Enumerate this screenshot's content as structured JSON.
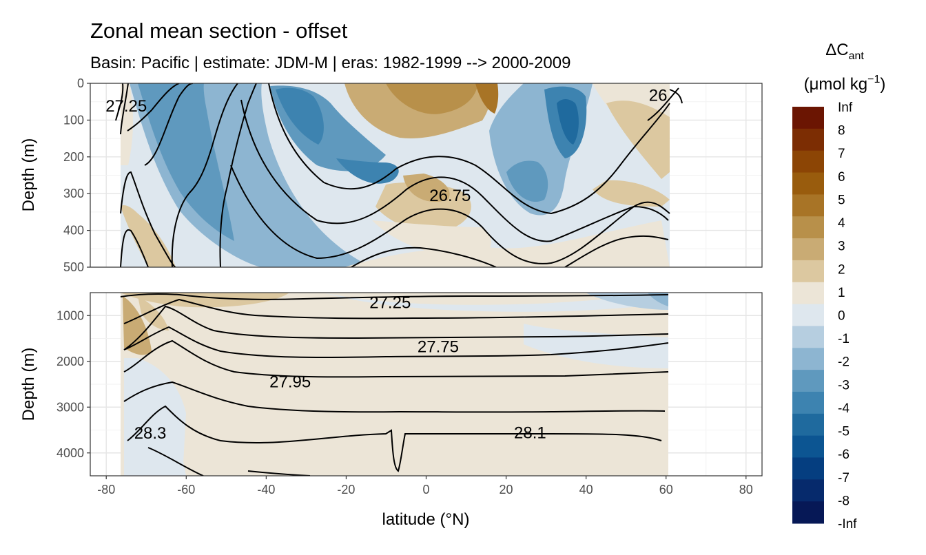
{
  "chart_data": {
    "type": "heatmap",
    "title": "Zonal mean section - offset",
    "subtitle": "Basin: Pacific | estimate: JDM-M | eras: 1982-1999 --> 2000-2009",
    "xlabel": "latitude (°N)",
    "x_ticks": [
      -80,
      -60,
      -40,
      -20,
      0,
      20,
      40,
      60,
      80
    ],
    "xlim": [
      -84,
      84
    ],
    "legend": {
      "title_main": "ΔC",
      "title_sub": "ant",
      "unit_main": "(μmol kg",
      "unit_sup": "−1",
      "unit_close": ")",
      "position": "right",
      "labels": [
        "Inf",
        "8",
        "7",
        "6",
        "5",
        "4",
        "3",
        "2",
        "1",
        "0",
        "-1",
        "-2",
        "-3",
        "-4",
        "-5",
        "-6",
        "-7",
        "-8",
        "-Inf"
      ],
      "colors": [
        "#6b1502",
        "#7c2d03",
        "#8c4505",
        "#995c0d",
        "#a87426",
        "#b8904a",
        "#c9ab74",
        "#dcc8a0",
        "#ece5d7",
        "#dee7ee",
        "#b6cee0",
        "#8db5d1",
        "#5f99be",
        "#3d83b0",
        "#1f6a9e",
        "#0c5592",
        "#053e80",
        "#062a6c",
        "#061856"
      ]
    },
    "panels": [
      {
        "name": "upper",
        "ylabel": "Depth (m)",
        "ylim": [
          500,
          0
        ],
        "y_ticks": [
          0,
          100,
          200,
          300,
          400,
          500
        ],
        "contour_labels": [
          {
            "text": "27.25",
            "lat": -75,
            "depth": 62
          },
          {
            "text": "26",
            "lat": 58,
            "depth": 33
          },
          {
            "text": "26.75",
            "lat": 6,
            "depth": 305
          }
        ]
      },
      {
        "name": "lower",
        "ylabel": "Depth (m)",
        "ylim": [
          4500,
          500
        ],
        "y_ticks": [
          1000,
          2000,
          3000,
          4000
        ],
        "contour_labels": [
          {
            "text": "27.25",
            "lat": -9,
            "depth": 720
          },
          {
            "text": "27.75",
            "lat": 3,
            "depth": 1680
          },
          {
            "text": "27.95",
            "lat": -34,
            "depth": 2450
          },
          {
            "text": "28.3",
            "lat": -69,
            "depth": 3570
          },
          {
            "text": "28.1",
            "lat": 26,
            "depth": 3560
          }
        ]
      }
    ]
  }
}
